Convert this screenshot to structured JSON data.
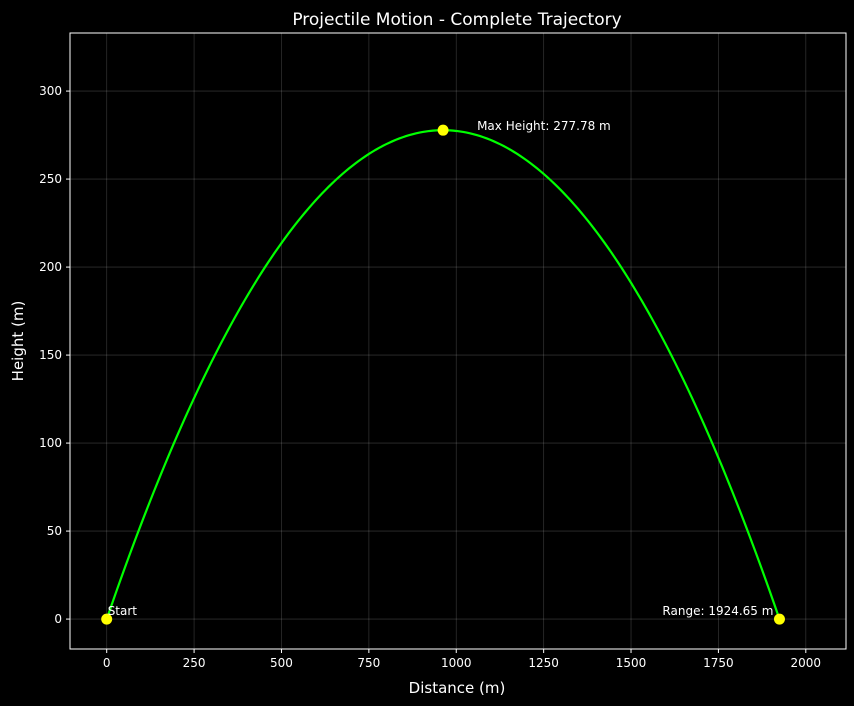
{
  "chart_data": {
    "type": "line",
    "title": "Projectile Motion - Complete Trajectory",
    "xlabel": "Distance (m)",
    "ylabel": "Height (m)",
    "xlim": [
      -105,
      2115
    ],
    "ylim": [
      -17,
      333
    ],
    "xticks": [
      0,
      250,
      500,
      750,
      1000,
      1250,
      1500,
      1750,
      2000
    ],
    "yticks": [
      0,
      50,
      100,
      150,
      200,
      250,
      300
    ],
    "grid": true,
    "series": [
      {
        "type": "parabola",
        "x_start": 0,
        "x_end": 1924.65,
        "peak_x": 962.33,
        "peak_y": 277.78,
        "color": "#00ff00"
      }
    ],
    "markers": [
      {
        "x": 0,
        "y": 0,
        "label": "Start",
        "color": "#ffff00"
      },
      {
        "x": 962.33,
        "y": 277.78,
        "label": "Max Height: 277.78 m",
        "color": "#ffff00"
      },
      {
        "x": 1924.65,
        "y": 0,
        "label": "Range: 1924.65 m",
        "color": "#ffff00"
      }
    ]
  }
}
